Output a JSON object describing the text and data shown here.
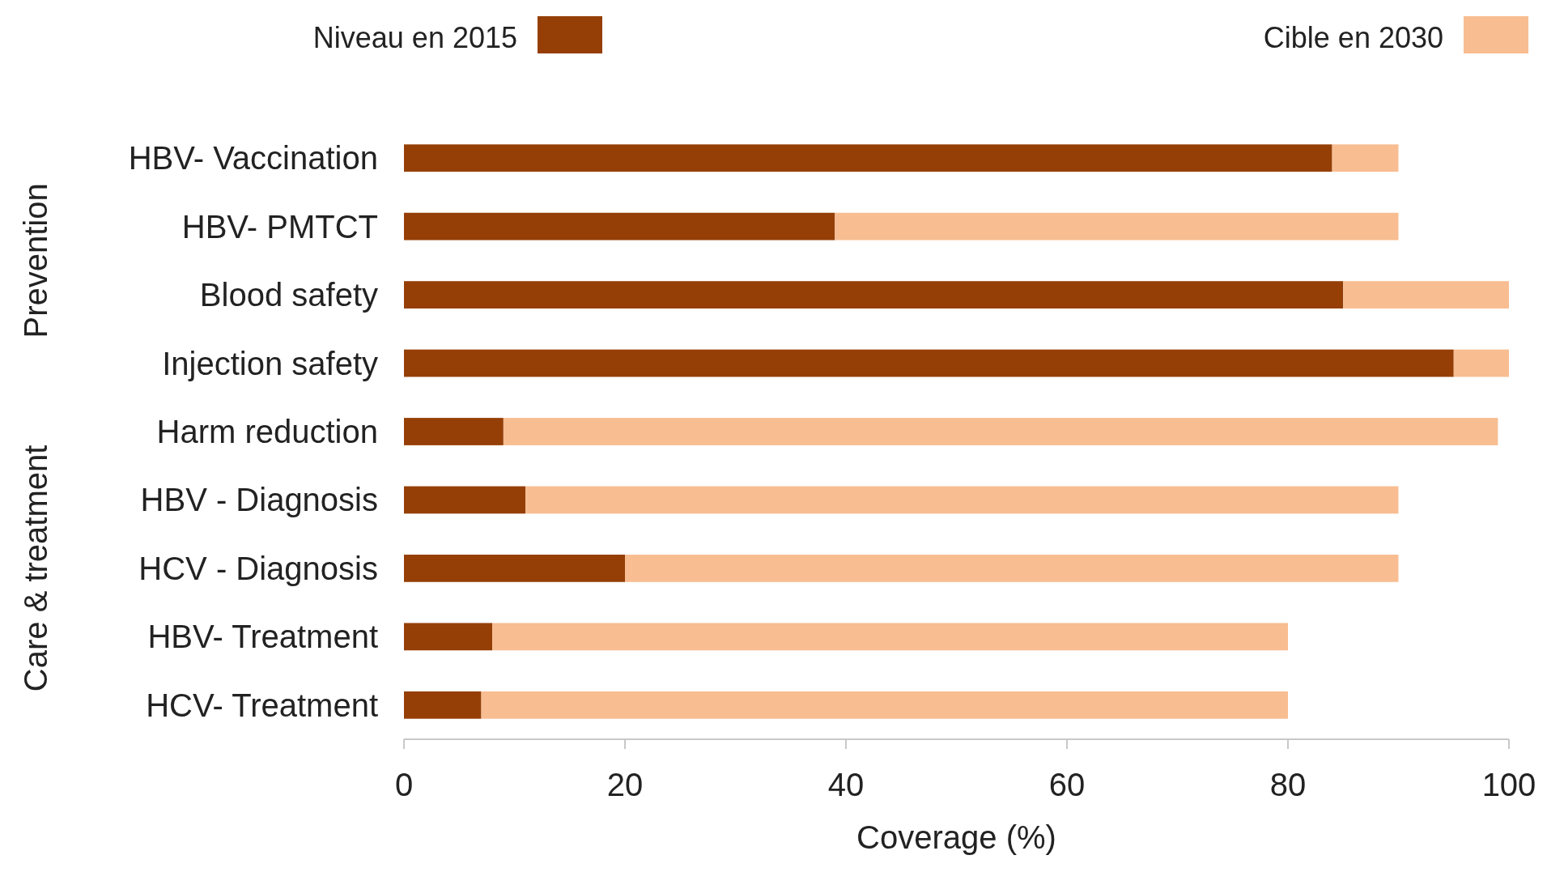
{
  "chart_data": {
    "type": "bar",
    "orientation": "horizontal",
    "stacked": true,
    "categories": [
      "HBV- Vaccination",
      "HBV- PMTCT",
      "Blood safety",
      "Injection safety",
      "Harm reduction",
      "HBV - Diagnosis",
      "HCV - Diagnosis",
      "HBV- Treatment",
      "HCV- Treatment"
    ],
    "series": [
      {
        "name": "Niveau en 2015",
        "color": "#953f06",
        "values": [
          84,
          39,
          85,
          95,
          9,
          11,
          20,
          8,
          7
        ]
      },
      {
        "name": "Cible en 2030",
        "color": "#f8bd91",
        "values": [
          6,
          51,
          15,
          5,
          90,
          79,
          70,
          72,
          73
        ]
      }
    ],
    "xlim": [
      0,
      100
    ],
    "xticks": [
      0,
      20,
      40,
      60,
      80,
      100
    ],
    "xlabel": "Coverage (%)",
    "legend": "top",
    "grid": false,
    "annotations": [
      "Prevention",
      "Care & treatment"
    ]
  }
}
